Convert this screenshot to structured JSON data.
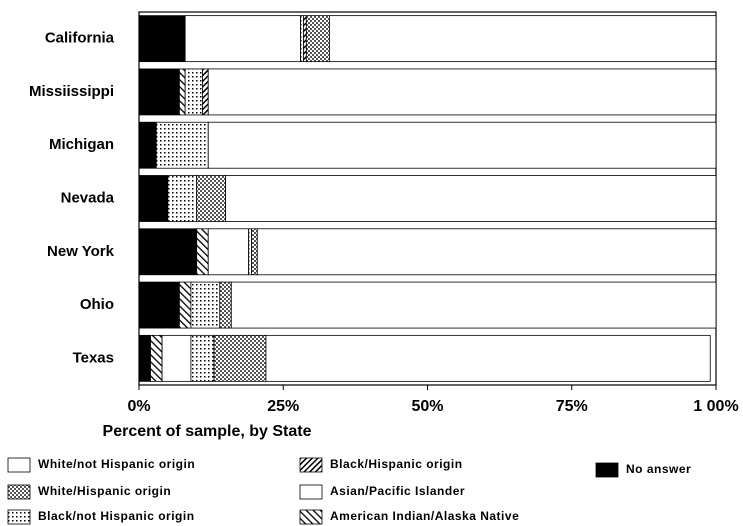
{
  "chart_data": {
    "type": "bar",
    "orientation": "horizontal",
    "stacked": true,
    "xlabel": "Percent of sample, by State",
    "categories": [
      "California",
      "Missiissippi",
      "Michigan",
      "Nevada",
      "New York",
      "Ohio",
      "Texas"
    ],
    "series": [
      {
        "name": "No answer",
        "values": [
          8,
          7,
          3,
          5,
          10,
          7,
          2
        ]
      },
      {
        "name": "American Indian/Alaska Native",
        "values": [
          0,
          1,
          0,
          0,
          2,
          2,
          2
        ]
      },
      {
        "name": "Asian/Pacific Islander",
        "values": [
          20,
          0,
          0,
          0,
          7,
          0,
          5
        ]
      },
      {
        "name": "Black/not Hispanic origin",
        "values": [
          0.5,
          3,
          9,
          5,
          0.5,
          5,
          4
        ]
      },
      {
        "name": "Black/Hispanic origin",
        "values": [
          0.5,
          1,
          0,
          0,
          0,
          0,
          0
        ]
      },
      {
        "name": "White/Hispanic origin",
        "values": [
          4,
          0,
          0,
          5,
          1,
          2,
          9
        ]
      },
      {
        "name": "White/not Hispanic origin",
        "values": [
          67,
          88,
          88,
          85,
          79.5,
          84,
          77
        ]
      }
    ],
    "xlim": [
      0,
      100
    ],
    "xticks": [
      {
        "value": 0,
        "label": "0%"
      },
      {
        "value": 25,
        "label": "25%"
      },
      {
        "value": 50,
        "label": "50%"
      },
      {
        "value": 75,
        "label": "75%"
      },
      {
        "value": 100,
        "label": "1 00%"
      }
    ]
  }
}
